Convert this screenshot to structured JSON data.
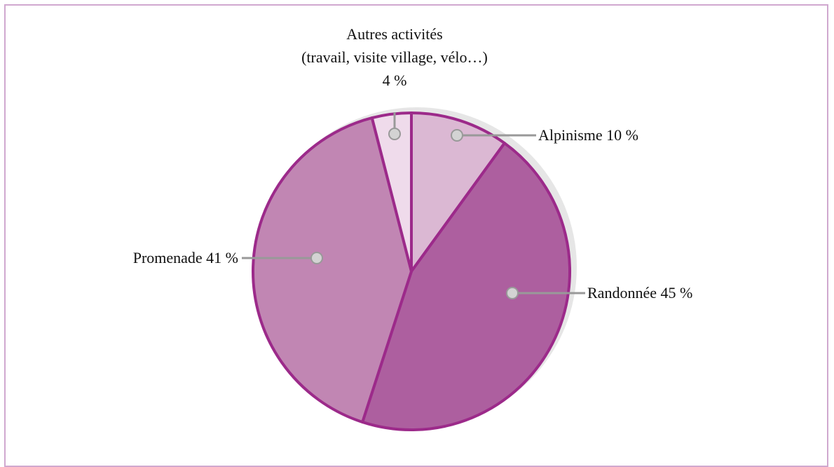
{
  "chart_data": {
    "type": "pie",
    "categories": [
      "Alpinisme",
      "Randonnée",
      "Promenade",
      "Autres activités\n(travail, visite village, vélo…)"
    ],
    "values": [
      10,
      45,
      41,
      4
    ],
    "value_labels": [
      "10 %",
      "45 %",
      "41 %",
      "4 %"
    ],
    "colors": [
      "#dbb8d3",
      "#ad5f9f",
      "#c186b3",
      "#efdbeb"
    ],
    "edge_color": "#9c2a8a"
  }
}
